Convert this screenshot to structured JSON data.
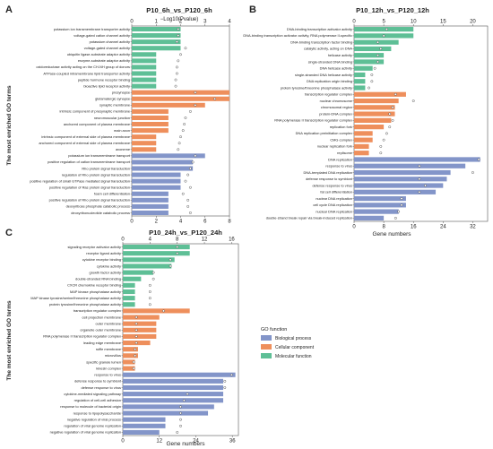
{
  "figure": {
    "y_axis_title": "The most enriched GO terms",
    "top_axis_title": "−Log10(Pvalue)",
    "bottom_axis_title": "Gene numbers",
    "legend": {
      "title": "GO function",
      "items": [
        {
          "label": "Biological process",
          "color": "#8395c9"
        },
        {
          "label": "Cellular component",
          "color": "#ee8f5c"
        },
        {
          "label": "Molecular function",
          "color": "#5ebf96"
        }
      ]
    }
  },
  "chart_data": [
    {
      "type": "bar",
      "panel": "A",
      "title": "P10_6h_vs_P120_6h",
      "xlabel_top": "−Log10(Pvalue)",
      "xlabel_bottom": "",
      "ylabel": "The most enriched GO terms",
      "bottom_ticks": [
        0,
        2,
        4,
        6,
        8
      ],
      "top_ticks": [
        0,
        1,
        2,
        3,
        4
      ],
      "xlim_count": [
        0,
        8
      ],
      "xlim_pvalue": [
        0,
        4
      ],
      "categories": [
        {
          "label": "potassium ion transmembrane transporter activity",
          "group": "MF",
          "count": 4,
          "pvalue": 1.9
        },
        {
          "label": "voltage-gated cation channel activity",
          "group": "MF",
          "count": 4,
          "pvalue": 1.9
        },
        {
          "label": "potassium channel activity",
          "group": "MF",
          "count": 4,
          "pvalue": 1.85
        },
        {
          "label": "voltage-gated channel activity",
          "group": "MF",
          "count": 4,
          "pvalue": 2.2
        },
        {
          "label": "ubiquitin ligase-substrate adaptor activity",
          "group": "MF",
          "count": 2,
          "pvalue": 2.0
        },
        {
          "label": "enzyme-substrate adaptor activity",
          "group": "MF",
          "count": 2,
          "pvalue": 1.9
        },
        {
          "label": "oxidoreductase activity acting on the CH-NH group of donors",
          "group": "MF",
          "count": 2,
          "pvalue": 1.85
        },
        {
          "label": "ATPase-coupled intramembrane lipid transporter activity",
          "group": "MF",
          "count": 2,
          "pvalue": 1.85
        },
        {
          "label": "peptide hormone receptor binding",
          "group": "MF",
          "count": 2,
          "pvalue": 1.8
        },
        {
          "label": "bioactive lipid receptor activity",
          "group": "MF",
          "count": 2,
          "pvalue": 1.8
        },
        {
          "label": "presynapse",
          "group": "CC",
          "count": 8,
          "pvalue": 2.6
        },
        {
          "label": "glutamatergic synapse",
          "group": "CC",
          "count": 8,
          "pvalue": 3.4
        },
        {
          "label": "synaptic membrane",
          "group": "CC",
          "count": 6,
          "pvalue": 2.6
        },
        {
          "label": "intrinsic component of presynaptic membrane",
          "group": "CC",
          "count": 3,
          "pvalue": 2.4
        },
        {
          "label": "neuromuscular junction",
          "group": "CC",
          "count": 3,
          "pvalue": 2.2
        },
        {
          "label": "anchored component of plasma membrane",
          "group": "CC",
          "count": 3,
          "pvalue": 2.15
        },
        {
          "label": "main axon",
          "group": "CC",
          "count": 3,
          "pvalue": 2.1
        },
        {
          "label": "intrinsic component of external side of plasma membrane",
          "group": "CC",
          "count": 2,
          "pvalue": 2.0
        },
        {
          "label": "anchored component of external side of plasma membrane",
          "group": "CC",
          "count": 2,
          "pvalue": 1.95
        },
        {
          "label": "axoneme",
          "group": "CC",
          "count": 2,
          "pvalue": 1.9
        },
        {
          "label": "potassium ion transmembrane transport",
          "group": "BP",
          "count": 6,
          "pvalue": 2.6
        },
        {
          "label": "positive regulation of cation transmembrane transport",
          "group": "BP",
          "count": 5,
          "pvalue": 2.5
        },
        {
          "label": "Rho protein signal transduction",
          "group": "BP",
          "count": 5,
          "pvalue": 2.4
        },
        {
          "label": "regulation of Rho protein signal transduction",
          "group": "BP",
          "count": 4,
          "pvalue": 2.3
        },
        {
          "label": "positive regulation of small GTPase mediated signal transduction",
          "group": "BP",
          "count": 4,
          "pvalue": 2.2
        },
        {
          "label": "positive regulation of Ras protein signal transduction",
          "group": "BP",
          "count": 4,
          "pvalue": 2.4
        },
        {
          "label": "foam cell differentiation",
          "group": "BP",
          "count": 3,
          "pvalue": 2.1
        },
        {
          "label": "positive regulation of Rho protein signal transduction",
          "group": "BP",
          "count": 3,
          "pvalue": 2.3
        },
        {
          "label": "deoxyribose phosphate catabolic process",
          "group": "BP",
          "count": 3,
          "pvalue": 2.3
        },
        {
          "label": "deoxyribonucleotide catabolic process",
          "group": "BP",
          "count": 3,
          "pvalue": 2.4
        }
      ]
    },
    {
      "type": "bar",
      "panel": "B",
      "title": "P10_12h_vs_P120_12h",
      "xlabel_top": "",
      "xlabel_bottom": "Gene numbers",
      "ylabel": "",
      "bottom_ticks": [
        0,
        8,
        16,
        24,
        32
      ],
      "top_ticks": [
        0,
        5,
        10,
        15,
        20
      ],
      "xlim_count": [
        0,
        36
      ],
      "xlim_pvalue": [
        0,
        22.5
      ],
      "categories": [
        {
          "label": "DNA-binding transcription activator activity",
          "group": "MF",
          "count": 16,
          "pvalue": 5.5
        },
        {
          "label": "DNA-binding transcription activator activity, RNA polymerase II-specific",
          "group": "MF",
          "count": 16,
          "pvalue": 5.0
        },
        {
          "label": "DNA-binding transcription factor binding",
          "group": "MF",
          "count": 12,
          "pvalue": 4.0
        },
        {
          "label": "catalytic activity, acting on DNA",
          "group": "MF",
          "count": 10,
          "pvalue": 4.5
        },
        {
          "label": "helicase activity",
          "group": "MF",
          "count": 8,
          "pvalue": 4.0
        },
        {
          "label": "single-stranded DNA binding",
          "group": "MF",
          "count": 8,
          "pvalue": 4.0
        },
        {
          "label": "DNA helicase activity",
          "group": "MF",
          "count": 5,
          "pvalue": 3.5
        },
        {
          "label": "single-stranded DNA helicase activity",
          "group": "MF",
          "count": 3,
          "pvalue": 3.0
        },
        {
          "label": "DNA replication origin binding",
          "group": "MF",
          "count": 3,
          "pvalue": 3.0
        },
        {
          "label": "protein tyrosine/threonine phosphatase activity",
          "group": "MF",
          "count": 3,
          "pvalue": 2.5
        },
        {
          "label": "transcription regulator complex",
          "group": "CC",
          "count": 14,
          "pvalue": 7.0
        },
        {
          "label": "nuclear chromosome",
          "group": "CC",
          "count": 12,
          "pvalue": 10.0
        },
        {
          "label": "chromosomal region",
          "group": "CC",
          "count": 11,
          "pvalue": 6.5
        },
        {
          "label": "protein-DNA complex",
          "group": "CC",
          "count": 11,
          "pvalue": 6.0
        },
        {
          "label": "RNA polymerase II transcription regulator complex",
          "group": "CC",
          "count": 10,
          "pvalue": 6.5
        },
        {
          "label": "replication fork",
          "group": "CC",
          "count": 8,
          "pvalue": 6.0
        },
        {
          "label": "DNA replication preinitiation complex",
          "group": "CC",
          "count": 5,
          "pvalue": 5.5
        },
        {
          "label": "CMG complex",
          "group": "CC",
          "count": 5,
          "pvalue": 5.0
        },
        {
          "label": "nuclear replication fork",
          "group": "CC",
          "count": 4,
          "pvalue": 4.5
        },
        {
          "label": "replisome",
          "group": "CC",
          "count": 4,
          "pvalue": 4.5
        },
        {
          "label": "DNA replication",
          "group": "BP",
          "count": 34,
          "pvalue": 21.0
        },
        {
          "label": "response to virus",
          "group": "BP",
          "count": 30,
          "pvalue": 11.0
        },
        {
          "label": "DNA-templated DNA replication",
          "group": "BP",
          "count": 26,
          "pvalue": 20.0
        },
        {
          "label": "defense response to symbiont",
          "group": "BP",
          "count": 25,
          "pvalue": 11.0
        },
        {
          "label": "defense response to virus",
          "group": "BP",
          "count": 24,
          "pvalue": 12.0
        },
        {
          "label": "fat cell differentiation",
          "group": "BP",
          "count": 22,
          "pvalue": 11.0
        },
        {
          "label": "nuclear DNA replication",
          "group": "BP",
          "count": 14,
          "pvalue": 8.0
        },
        {
          "label": "cell cycle DNA replication",
          "group": "BP",
          "count": 14,
          "pvalue": 8.0
        },
        {
          "label": "nuclear DNA replication",
          "group": "BP",
          "count": 12,
          "pvalue": 7.5
        },
        {
          "label": "double-strand break repair via break-induced replication",
          "group": "BP",
          "count": 8,
          "pvalue": 7.0
        }
      ]
    },
    {
      "type": "bar",
      "panel": "C",
      "title": "P10_24h_vs_P120_24h",
      "xlabel_top": "",
      "xlabel_bottom": "Gene numbers",
      "ylabel": "The most enriched GO terms",
      "bottom_ticks": [
        0,
        12,
        24,
        36
      ],
      "top_ticks": [
        0,
        4,
        8,
        12,
        16
      ],
      "xlim_count": [
        0,
        38
      ],
      "xlim_pvalue": [
        0,
        17
      ],
      "categories": [
        {
          "label": "signaling receptor activator activity",
          "group": "MF",
          "count": 22,
          "pvalue": 8.0
        },
        {
          "label": "receptor ligand activity",
          "group": "MF",
          "count": 22,
          "pvalue": 8.0
        },
        {
          "label": "cytokine receptor binding",
          "group": "MF",
          "count": 17,
          "pvalue": 7.0
        },
        {
          "label": "cytokine activity",
          "group": "MF",
          "count": 16,
          "pvalue": 7.0
        },
        {
          "label": "growth factor activity",
          "group": "MF",
          "count": 10,
          "pvalue": 4.5
        },
        {
          "label": "double-stranded RNA binding",
          "group": "MF",
          "count": 6,
          "pvalue": 4.5
        },
        {
          "label": "CXCR chemokine receptor binding",
          "group": "MF",
          "count": 4,
          "pvalue": 4.0
        },
        {
          "label": "MAP kinase phosphatase activity",
          "group": "MF",
          "count": 4,
          "pvalue": 4.0
        },
        {
          "label": "MAP kinase tyrosine/serine/threonine phosphatase activity",
          "group": "MF",
          "count": 4,
          "pvalue": 4.0
        },
        {
          "label": "protein tyrosine/threonine phosphatase activity",
          "group": "MF",
          "count": 4,
          "pvalue": 4.0
        },
        {
          "label": "transcription regulator complex",
          "group": "CC",
          "count": 22,
          "pvalue": 6.0
        },
        {
          "label": "cell projection membrane",
          "group": "CC",
          "count": 12,
          "pvalue": 2.0
        },
        {
          "label": "outer membrane",
          "group": "CC",
          "count": 11,
          "pvalue": 2.0
        },
        {
          "label": "organelle outer membrane",
          "group": "CC",
          "count": 11,
          "pvalue": 2.0
        },
        {
          "label": "RNA polymerase II transcription regulator complex",
          "group": "CC",
          "count": 11,
          "pvalue": 2.0
        },
        {
          "label": "leading edge membrane",
          "group": "CC",
          "count": 9,
          "pvalue": 2.0
        },
        {
          "label": "ruffle membrane",
          "group": "CC",
          "count": 5,
          "pvalue": 1.8
        },
        {
          "label": "microvillus",
          "group": "CC",
          "count": 5,
          "pvalue": 1.8
        },
        {
          "label": "specific granule lumen",
          "group": "CC",
          "count": 4,
          "pvalue": 1.6
        },
        {
          "label": "kinesin complex",
          "group": "CC",
          "count": 4,
          "pvalue": 1.6
        },
        {
          "label": "response to virus",
          "group": "BP",
          "count": 37,
          "pvalue": 16.0
        },
        {
          "label": "defense response to symbiont",
          "group": "BP",
          "count": 33,
          "pvalue": 15.0
        },
        {
          "label": "defense response to virus",
          "group": "BP",
          "count": 33,
          "pvalue": 15.0
        },
        {
          "label": "cytokine-mediated signaling pathway",
          "group": "BP",
          "count": 33,
          "pvalue": 9.5
        },
        {
          "label": "regulation of cell-cell adhesion",
          "group": "BP",
          "count": 33,
          "pvalue": 9.0
        },
        {
          "label": "response to molecule of bacterial origin",
          "group": "BP",
          "count": 30,
          "pvalue": 8.5
        },
        {
          "label": "response to lipopolysaccharide",
          "group": "BP",
          "count": 28,
          "pvalue": 8.5
        },
        {
          "label": "negative regulation of viral process",
          "group": "BP",
          "count": 14,
          "pvalue": 8.5
        },
        {
          "label": "regulation of viral genome replication",
          "group": "BP",
          "count": 14,
          "pvalue": 8.5
        },
        {
          "label": "negative regulation of viral genome replication",
          "group": "BP",
          "count": 12,
          "pvalue": 8.0
        }
      ]
    }
  ]
}
